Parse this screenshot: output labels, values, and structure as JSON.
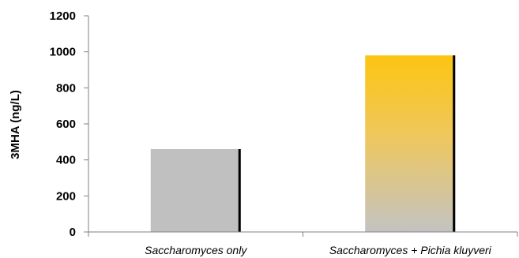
{
  "chart_data": {
    "type": "bar",
    "categories": [
      "Saccharomyces only",
      "Saccharomyces + Pichia kluyveri"
    ],
    "values": [
      460,
      980
    ],
    "title": "",
    "xlabel": "",
    "ylabel": "3MHA (ng/L)",
    "ylim": [
      0,
      1200
    ],
    "yticks": [
      0,
      200,
      400,
      600,
      800,
      1000,
      1200
    ],
    "grid": false,
    "legend": "none",
    "bar_colors": [
      "#c0c0c0",
      "gradient:#fcc512-#c3c3c3"
    ]
  }
}
